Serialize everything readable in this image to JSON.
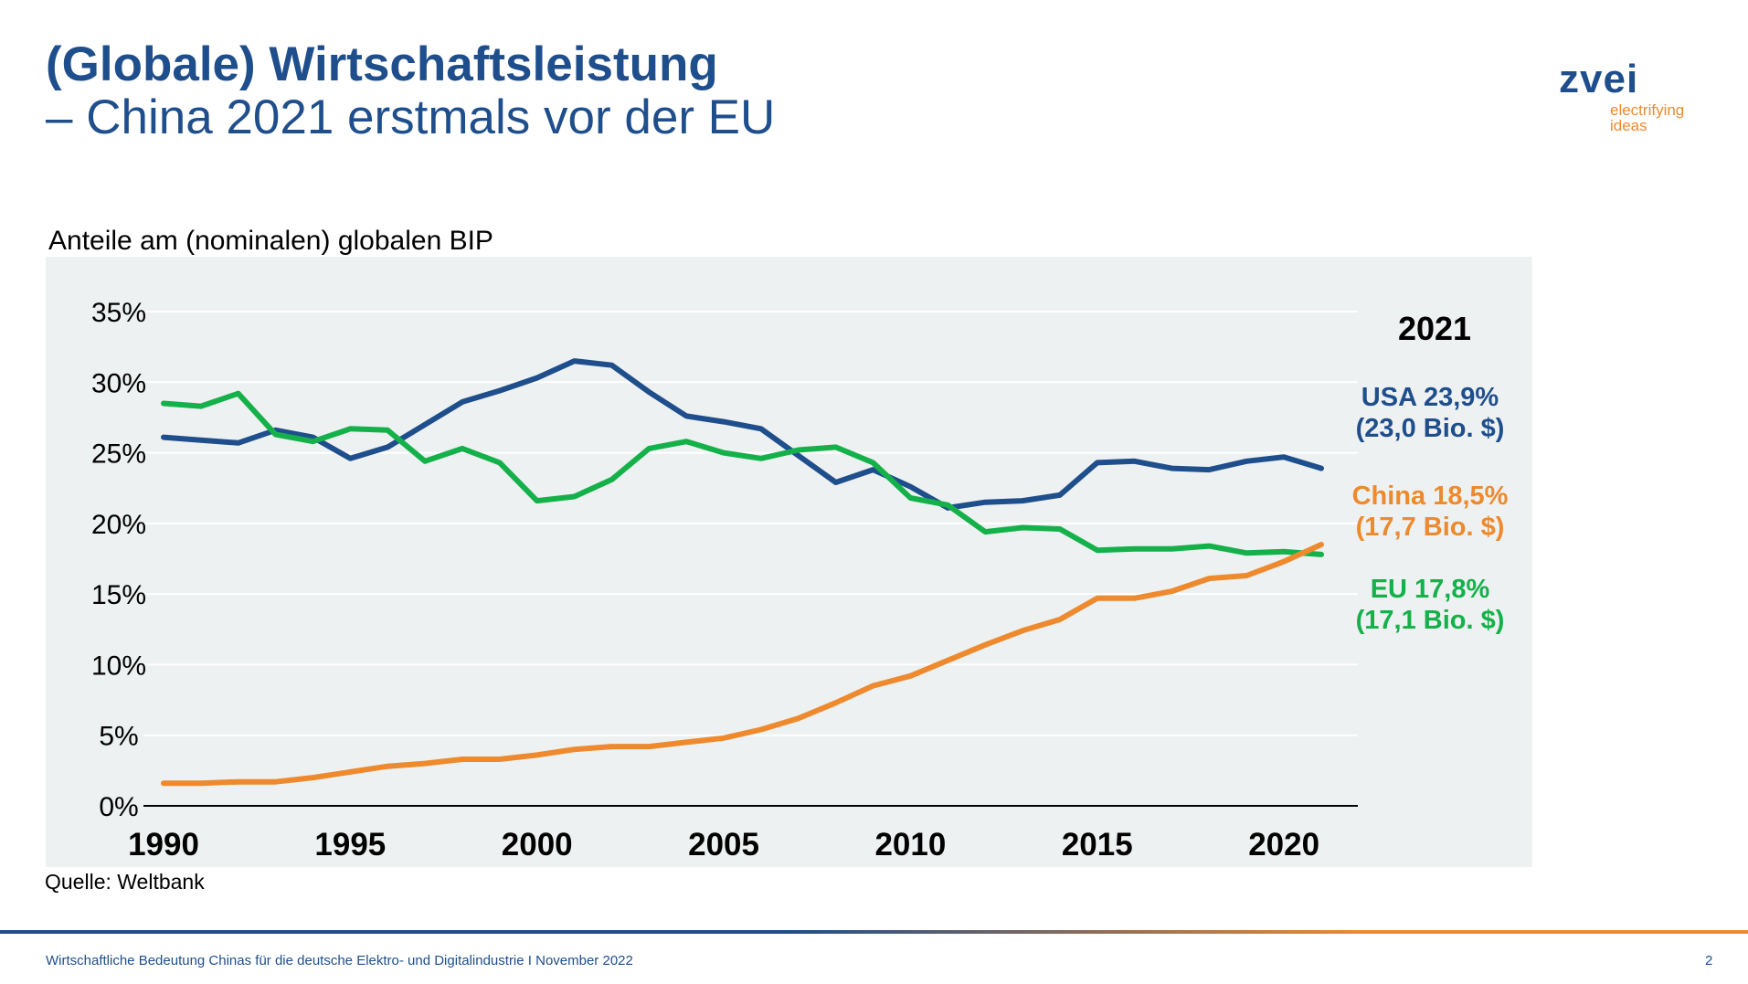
{
  "header": {
    "title": "(Globale) Wirtschaftsleistung",
    "subtitle": "– China 2021 erstmals vor der EU"
  },
  "logo": {
    "word": "zvei",
    "tagline_1": "electrifying",
    "tagline_2": "ideas"
  },
  "chart_data": {
    "type": "line",
    "title": "Anteile am (nominalen) globalen BIP",
    "xlabel": "",
    "ylabel": "",
    "x": [
      1990,
      1991,
      1992,
      1993,
      1994,
      1995,
      1996,
      1997,
      1998,
      1999,
      2000,
      2001,
      2002,
      2003,
      2004,
      2005,
      2006,
      2007,
      2008,
      2009,
      2010,
      2011,
      2012,
      2013,
      2014,
      2015,
      2016,
      2017,
      2018,
      2019,
      2020,
      2021
    ],
    "x_ticks": [
      1990,
      1995,
      2000,
      2005,
      2010,
      2015,
      2020
    ],
    "y_ticks": [
      0,
      5,
      10,
      15,
      20,
      25,
      30,
      35
    ],
    "y_tick_labels": [
      "0%",
      "5%",
      "10%",
      "15%",
      "20%",
      "25%",
      "30%",
      "35%"
    ],
    "ylim": [
      0,
      35
    ],
    "xlim": [
      1990,
      2021
    ],
    "grid": "horizontal",
    "series": [
      {
        "key": "usa",
        "color": "#1f4e8c",
        "values": [
          26.1,
          25.9,
          25.7,
          26.6,
          26.1,
          24.6,
          25.4,
          27.0,
          28.6,
          29.4,
          30.3,
          31.5,
          31.2,
          29.3,
          27.6,
          27.2,
          26.7,
          24.8,
          22.9,
          23.8,
          22.6,
          21.1,
          21.5,
          21.6,
          22.0,
          24.3,
          24.4,
          23.9,
          23.8,
          24.4,
          24.7,
          23.9
        ]
      },
      {
        "key": "eu",
        "color": "#14b14a",
        "values": [
          28.5,
          28.3,
          29.2,
          26.3,
          25.8,
          26.7,
          26.6,
          24.4,
          25.3,
          24.3,
          21.6,
          21.9,
          23.1,
          25.3,
          25.8,
          25.0,
          24.6,
          25.2,
          25.4,
          24.3,
          21.8,
          21.3,
          19.4,
          19.7,
          19.6,
          18.1,
          18.2,
          18.2,
          18.4,
          17.9,
          18.0,
          17.8
        ]
      },
      {
        "key": "china",
        "color": "#ee8a2d",
        "values": [
          1.6,
          1.6,
          1.7,
          1.7,
          2.0,
          2.4,
          2.8,
          3.0,
          3.3,
          3.3,
          3.6,
          4.0,
          4.2,
          4.2,
          4.5,
          4.8,
          5.4,
          6.2,
          7.3,
          8.5,
          9.2,
          10.3,
          11.4,
          12.4,
          13.2,
          14.7,
          14.7,
          15.2,
          16.1,
          16.3,
          17.3,
          18.5
        ]
      }
    ],
    "annotations": {
      "year": "2021",
      "usa_line_1": "USA 23,9%",
      "usa_line_2": "(23,0 Bio. $)",
      "china_line_1": "China 18,5%",
      "china_line_2": "(17,7 Bio. $)",
      "eu_line_1": "EU 17,8%",
      "eu_line_2": "(17,1 Bio. $)"
    }
  },
  "source": "Quelle: Weltbank",
  "footer": {
    "text": "Wirtschaftliche Bedeutung Chinas für die deutsche Elektro- und Digitalindustrie I November 2022",
    "page_number": "2"
  },
  "colors": {
    "brand_blue": "#1f4e8c",
    "brand_orange": "#ee8a2d",
    "eu_green": "#14b14a",
    "panel_bg": "#eef1f1"
  }
}
